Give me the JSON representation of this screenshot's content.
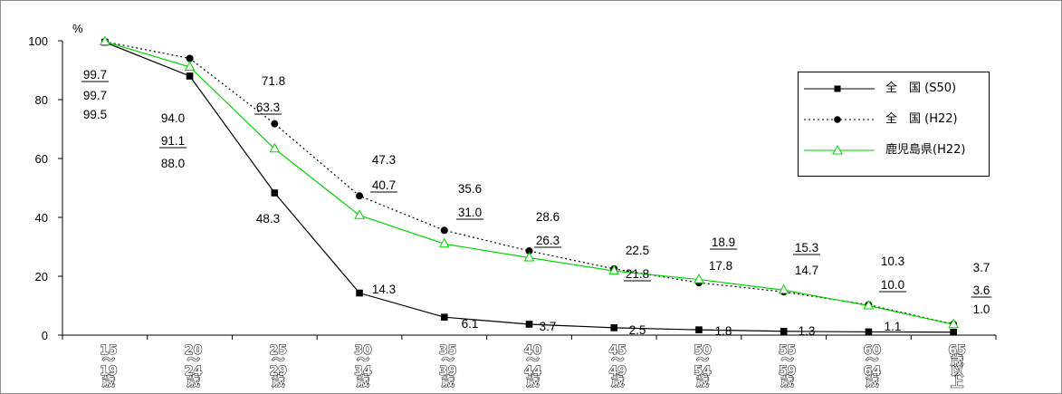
{
  "chart_data": {
    "type": "line",
    "unit_label": "%",
    "categories": [
      "15\n～\n19\n歳",
      "20\n～\n24\n歳",
      "25\n～\n29\n歳",
      "30\n～\n34\n歳",
      "35\n～\n39\n歳",
      "40\n～\n44\n歳",
      "45\n～\n49\n歳",
      "50\n～\n54\n歳",
      "55\n～\n59\n歳",
      "60\n～\n64\n歳",
      "65\n歳\n以\n上"
    ],
    "yticks": [
      0,
      20,
      40,
      60,
      80,
      100
    ],
    "ylim": [
      0,
      100
    ],
    "series": [
      {
        "name": "全　国 (S50)",
        "color": "#000000",
        "marker": "square",
        "dash": "solid",
        "values": [
          99.5,
          88.0,
          48.3,
          14.3,
          6.1,
          3.7,
          2.5,
          1.8,
          1.3,
          1.1,
          1.0
        ]
      },
      {
        "name": "全　国 (H22)",
        "color": "#000000",
        "marker": "circle",
        "dash": "dotted",
        "values": [
          99.7,
          94.0,
          71.8,
          47.3,
          35.6,
          28.6,
          22.5,
          17.8,
          14.7,
          10.3,
          3.7
        ]
      },
      {
        "name": "鹿児島県(H22)",
        "color": "#00d600",
        "marker": "triangle",
        "dash": "solid",
        "values": [
          99.7,
          91.1,
          63.3,
          40.7,
          31.0,
          26.3,
          21.8,
          18.9,
          15.3,
          10.0,
          3.6
        ]
      }
    ],
    "data_labels": [
      {
        "text": "99.7",
        "underline": true
      },
      {
        "text": "99.7",
        "underline": false
      },
      {
        "text": "99.5",
        "underline": false
      },
      {
        "text": "94.0",
        "underline": false
      },
      {
        "text": "91.1",
        "underline": true
      },
      {
        "text": "88.0",
        "underline": false
      },
      {
        "text": "71.8",
        "underline": false
      },
      {
        "text": "63.3",
        "underline": true
      },
      {
        "text": "48.3",
        "underline": false
      },
      {
        "text": "47.3",
        "underline": false
      },
      {
        "text": "40.7",
        "underline": true
      },
      {
        "text": "14.3",
        "underline": false
      },
      {
        "text": "35.6",
        "underline": false
      },
      {
        "text": "31.0",
        "underline": true
      },
      {
        "text": "6.1",
        "underline": false
      },
      {
        "text": "28.6",
        "underline": false
      },
      {
        "text": "26.3",
        "underline": true
      },
      {
        "text": "3.7",
        "underline": false
      },
      {
        "text": "22.5",
        "underline": false
      },
      {
        "text": "21.8",
        "underline": true
      },
      {
        "text": "2.5",
        "underline": false
      },
      {
        "text": "18.9",
        "underline": true
      },
      {
        "text": "17.8",
        "underline": false
      },
      {
        "text": "1.8",
        "underline": false
      },
      {
        "text": "15.3",
        "underline": true
      },
      {
        "text": "14.7",
        "underline": false
      },
      {
        "text": "1.3",
        "underline": false
      },
      {
        "text": "10.3",
        "underline": false
      },
      {
        "text": "10.0",
        "underline": true
      },
      {
        "text": "1.1",
        "underline": false
      },
      {
        "text": "3.7",
        "underline": false
      },
      {
        "text": "3.6",
        "underline": true
      },
      {
        "text": "1.0",
        "underline": false
      }
    ],
    "legend": {
      "placement": "top-right"
    },
    "grid": false
  }
}
